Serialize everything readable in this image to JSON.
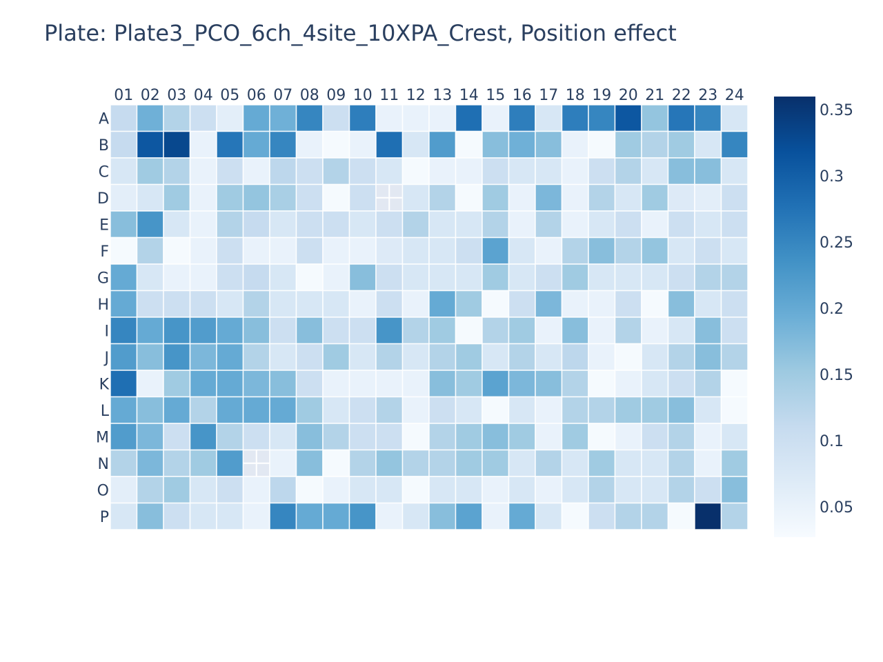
{
  "chart_data": {
    "type": "heatmap",
    "title": "Plate: Plate3_PCO_6ch_4site_10XPA_Crest, Position effect",
    "columns": [
      "01",
      "02",
      "03",
      "04",
      "05",
      "06",
      "07",
      "08",
      "09",
      "10",
      "11",
      "12",
      "13",
      "14",
      "15",
      "16",
      "17",
      "18",
      "19",
      "20",
      "21",
      "22",
      "23",
      "24"
    ],
    "rows": [
      "A",
      "B",
      "C",
      "D",
      "E",
      "F",
      "G",
      "H",
      "I",
      "J",
      "K",
      "L",
      "M",
      "N",
      "O",
      "P"
    ],
    "values": [
      [
        0.11,
        0.19,
        0.13,
        0.1,
        0.06,
        0.2,
        0.19,
        0.25,
        0.1,
        0.26,
        0.05,
        0.05,
        0.05,
        0.28,
        0.05,
        0.26,
        0.08,
        0.26,
        0.25,
        0.31,
        0.16,
        0.27,
        0.25,
        0.08
      ],
      [
        0.11,
        0.31,
        0.33,
        0.05,
        0.27,
        0.2,
        0.25,
        0.05,
        0.03,
        0.05,
        0.28,
        0.08,
        0.22,
        0.03,
        0.17,
        0.19,
        0.17,
        0.05,
        0.03,
        0.15,
        0.13,
        0.15,
        0.08,
        0.25
      ],
      [
        0.08,
        0.15,
        0.13,
        0.05,
        0.1,
        0.05,
        0.12,
        0.1,
        0.13,
        0.1,
        0.08,
        0.03,
        0.05,
        0.05,
        0.1,
        0.08,
        0.08,
        0.05,
        0.1,
        0.13,
        0.08,
        0.17,
        0.17,
        0.08
      ],
      [
        0.06,
        0.08,
        0.15,
        0.05,
        0.15,
        0.16,
        0.14,
        0.1,
        0.03,
        0.1,
        null,
        0.08,
        0.13,
        0.03,
        0.15,
        0.05,
        0.18,
        0.05,
        0.13,
        0.08,
        0.15,
        0.07,
        0.06,
        0.1
      ],
      [
        0.17,
        0.23,
        0.08,
        0.05,
        0.13,
        0.11,
        0.08,
        0.1,
        0.1,
        0.08,
        0.1,
        0.13,
        0.08,
        0.08,
        0.13,
        0.05,
        0.13,
        0.05,
        0.08,
        0.1,
        0.05,
        0.1,
        0.08,
        0.1
      ],
      [
        0.03,
        0.13,
        0.03,
        0.05,
        0.1,
        0.05,
        0.05,
        0.1,
        0.05,
        0.05,
        0.07,
        0.08,
        0.08,
        0.1,
        0.21,
        0.08,
        0.05,
        0.13,
        0.17,
        0.13,
        0.16,
        0.08,
        0.1,
        0.08
      ],
      [
        0.2,
        0.08,
        0.05,
        0.05,
        0.1,
        0.11,
        0.08,
        0.03,
        0.05,
        0.17,
        0.1,
        0.08,
        0.08,
        0.08,
        0.15,
        0.08,
        0.1,
        0.15,
        0.08,
        0.08,
        0.08,
        0.1,
        0.13,
        0.13
      ],
      [
        0.2,
        0.1,
        0.1,
        0.1,
        0.08,
        0.13,
        0.08,
        0.08,
        0.08,
        0.05,
        0.1,
        0.05,
        0.2,
        0.15,
        0.03,
        0.1,
        0.18,
        0.05,
        0.05,
        0.1,
        0.03,
        0.17,
        0.08,
        0.1
      ],
      [
        0.25,
        0.2,
        0.23,
        0.22,
        0.2,
        0.17,
        0.1,
        0.17,
        0.1,
        0.1,
        0.23,
        0.13,
        0.15,
        0.03,
        0.13,
        0.15,
        0.05,
        0.17,
        0.05,
        0.13,
        0.05,
        0.08,
        0.17,
        0.1
      ],
      [
        0.22,
        0.17,
        0.23,
        0.18,
        0.2,
        0.13,
        0.08,
        0.1,
        0.15,
        0.08,
        0.13,
        0.08,
        0.13,
        0.15,
        0.08,
        0.13,
        0.08,
        0.12,
        0.05,
        0.03,
        0.08,
        0.13,
        0.17,
        0.13
      ],
      [
        0.28,
        0.05,
        0.15,
        0.2,
        0.2,
        0.18,
        0.17,
        0.1,
        0.05,
        0.05,
        0.05,
        0.05,
        0.17,
        0.15,
        0.21,
        0.18,
        0.17,
        0.13,
        0.03,
        0.05,
        0.08,
        0.1,
        0.13,
        0.03
      ],
      [
        0.2,
        0.17,
        0.2,
        0.13,
        0.2,
        0.2,
        0.2,
        0.15,
        0.08,
        0.1,
        0.13,
        0.05,
        0.1,
        0.08,
        0.03,
        0.08,
        0.05,
        0.13,
        0.13,
        0.15,
        0.15,
        0.17,
        0.08,
        0.03
      ],
      [
        0.22,
        0.18,
        0.1,
        0.23,
        0.13,
        0.1,
        0.08,
        0.17,
        0.13,
        0.1,
        0.1,
        0.03,
        0.13,
        0.15,
        0.17,
        0.15,
        0.05,
        0.15,
        0.03,
        0.05,
        0.1,
        0.13,
        0.05,
        0.08
      ],
      [
        0.13,
        0.18,
        0.13,
        0.15,
        0.22,
        null,
        0.05,
        0.17,
        0.03,
        0.13,
        0.16,
        0.13,
        0.13,
        0.15,
        0.15,
        0.08,
        0.13,
        0.08,
        0.15,
        0.08,
        0.08,
        0.13,
        0.05,
        0.15
      ],
      [
        0.06,
        0.13,
        0.15,
        0.08,
        0.1,
        0.05,
        0.12,
        0.03,
        0.05,
        0.08,
        0.08,
        0.03,
        0.08,
        0.08,
        0.05,
        0.08,
        0.05,
        0.08,
        0.13,
        0.08,
        0.08,
        0.13,
        0.1,
        0.17
      ],
      [
        0.08,
        0.17,
        0.1,
        0.08,
        0.08,
        0.05,
        0.25,
        0.2,
        0.2,
        0.23,
        0.05,
        0.08,
        0.17,
        0.21,
        0.05,
        0.2,
        0.08,
        0.03,
        0.1,
        0.13,
        0.13,
        0.03,
        0.36,
        0.13
      ]
    ],
    "zmin": 0.027,
    "zmax": 0.36,
    "colorscale": "Blues",
    "colorbar_ticks": [
      0.05,
      0.1,
      0.15,
      0.2,
      0.25,
      0.3,
      0.35
    ],
    "colorbar_tick_labels": [
      "0.05",
      "0.1",
      "0.15",
      "0.2",
      "0.25",
      "0.3",
      "0.35"
    ],
    "missing_marker_color": "#ffffff"
  }
}
